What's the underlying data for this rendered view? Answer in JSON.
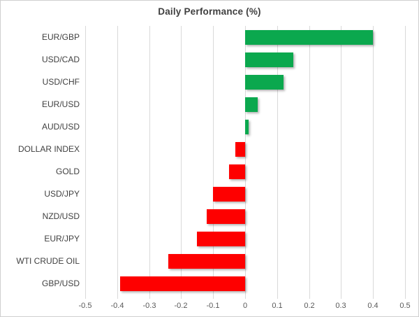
{
  "window": {
    "background": "#ffffff",
    "border_color": "#cfcfcf"
  },
  "chart_data": {
    "type": "bar",
    "orientation": "horizontal",
    "title": "Daily Performance (%)",
    "categories": [
      "EUR/GBP",
      "USD/CAD",
      "USD/CHF",
      "EUR/USD",
      "AUD/USD",
      "DOLLAR INDEX",
      "GOLD",
      "USD/JPY",
      "NZD/USD",
      "EUR/JPY",
      "WTI CRUDE OIL",
      "GBP/USD"
    ],
    "values": [
      0.4,
      0.15,
      0.12,
      0.04,
      0.01,
      -0.03,
      -0.05,
      -0.1,
      -0.12,
      -0.15,
      -0.24,
      -0.39
    ],
    "xlim": [
      -0.5,
      0.5
    ],
    "xticks": [
      -0.5,
      -0.4,
      -0.3,
      -0.2,
      -0.1,
      0,
      0.1,
      0.2,
      0.3,
      0.4,
      0.5
    ],
    "xtick_labels": [
      "-0.5",
      "-0.4",
      "-0.3",
      "-0.2",
      "-0.1",
      "0",
      "0.1",
      "0.2",
      "0.3",
      "0.4",
      "0.5"
    ],
    "grid": true,
    "legend": false,
    "colors": {
      "positive": "#0BA84E",
      "negative": "#FE0000",
      "gridline": "#d9d9d9",
      "title": "#3f3f3f",
      "category_label": "#404040",
      "tick_label": "#595959"
    }
  }
}
